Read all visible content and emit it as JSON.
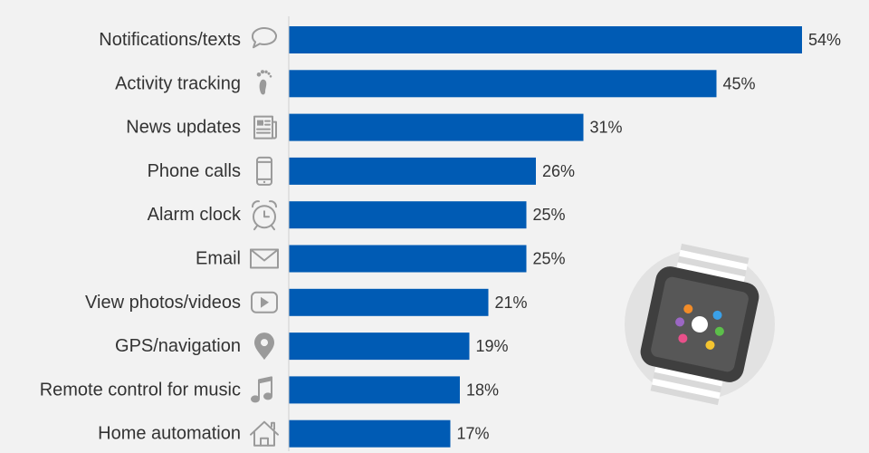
{
  "chart_data": {
    "type": "bar",
    "orientation": "horizontal",
    "categories": [
      "Notifications/texts",
      "Activity tracking",
      "News updates",
      "Phone calls",
      "Alarm clock",
      "Email",
      "View photos/videos",
      "GPS/navigation",
      "Remote control for music",
      "Home automation"
    ],
    "values": [
      54,
      45,
      31,
      26,
      25,
      25,
      21,
      19,
      18,
      17
    ],
    "value_labels": [
      "54%",
      "45%",
      "31%",
      "26%",
      "25%",
      "25%",
      "21%",
      "19%",
      "18%",
      "17%"
    ],
    "icons": [
      "speech-bubble-icon",
      "footprint-icon",
      "newspaper-icon",
      "smartphone-icon",
      "alarm-clock-icon",
      "envelope-icon",
      "play-video-icon",
      "map-pin-icon",
      "music-note-icon",
      "house-icon"
    ],
    "unit": "%",
    "xlim": [
      0,
      54
    ],
    "grid": false,
    "legend": "none"
  },
  "colors": {
    "bar": "#005bb4",
    "background": "#f2f2f2",
    "text": "#333333",
    "icon": "#9a9a9a"
  },
  "illustration": "smartwatch-illustration"
}
